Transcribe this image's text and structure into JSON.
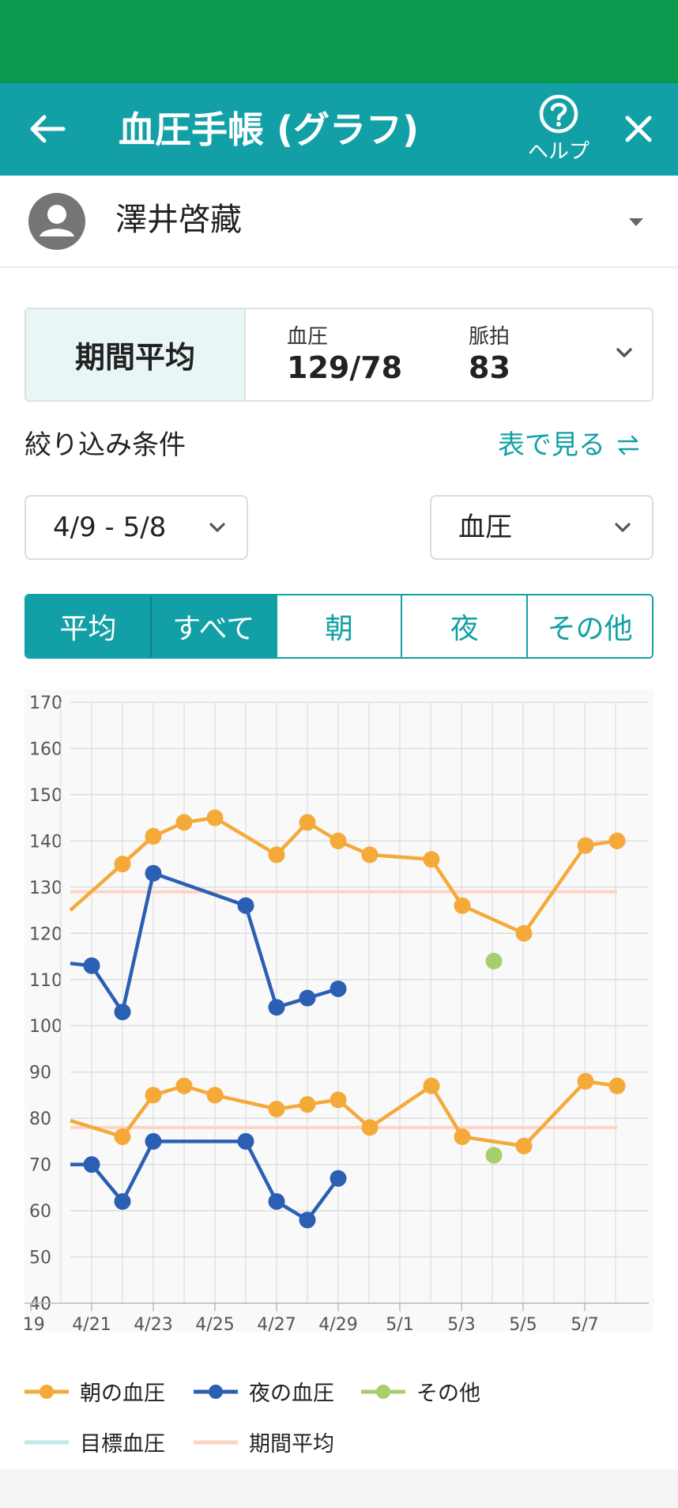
{
  "colors": {
    "status_bar": "#0a9a4e",
    "app_bar": "#12a0a6",
    "accent": "#12a0a6",
    "summary_label_bg": "#e8f6f5",
    "morning": "#f5a939",
    "night": "#2b5fb3",
    "other": "#a6cf6c",
    "target": "#bfeae6",
    "average": "#fdd3c4",
    "grid": "#dddddd",
    "plot_bg": "#f9f9f9"
  },
  "header": {
    "back_icon": "arrow-left-icon",
    "title": "血圧手帳 (グラフ)",
    "help_icon": "question-circle-icon",
    "help_label": "ヘルプ",
    "close_icon": "close-icon"
  },
  "user": {
    "avatar_icon": "person-avatar-icon",
    "name": "澤井啓藏",
    "dropdown_icon": "triangle-down-icon"
  },
  "summary": {
    "label": "期間平均",
    "bp_caption": "血圧",
    "bp_value": "129/78",
    "pulse_caption": "脈拍",
    "pulse_value": "83",
    "expand_icon": "chevron-down-icon"
  },
  "filter": {
    "title": "絞り込み条件",
    "table_link": "表で見る",
    "swap_icon": "swap-arrows-icon",
    "period_value": "4/9 - 5/8",
    "type_value": "血圧"
  },
  "tabs": [
    {
      "label": "平均",
      "active": true
    },
    {
      "label": "すべて",
      "active": true
    },
    {
      "label": "朝",
      "active": false
    },
    {
      "label": "夜",
      "active": false
    },
    {
      "label": "その他",
      "active": false
    }
  ],
  "chart_data": {
    "type": "line",
    "x_ticks": [
      "/19",
      "4/21",
      "4/23",
      "4/25",
      "4/27",
      "4/29",
      "5/1",
      "5/3",
      "5/5",
      "5/7"
    ],
    "y_ticks": [
      170,
      160,
      150,
      140,
      130,
      120,
      110,
      100,
      90,
      80,
      70,
      60,
      50,
      40
    ],
    "ylim": [
      40,
      170
    ],
    "grid": true,
    "series": [
      {
        "name": "朝の血圧",
        "key": "morning",
        "lines": [
          [
            [
              "4/20",
              125,
              false
            ],
            [
              "4/21",
              135
            ],
            [
              "4/22",
              141
            ],
            [
              "4/23",
              144
            ],
            [
              "4/24",
              145
            ],
            [
              "4/26",
              137
            ],
            [
              "4/27",
              144
            ],
            [
              "4/28",
              140
            ],
            [
              "4/29",
              137
            ],
            [
              "5/1",
              136
            ],
            [
              "5/2",
              126
            ],
            [
              "5/4",
              120
            ],
            [
              "5/6",
              139
            ],
            [
              "5/7",
              140
            ]
          ],
          [
            [
              "4/20",
              79.5,
              false
            ],
            [
              "4/21",
              76
            ],
            [
              "4/22",
              85
            ],
            [
              "4/23",
              87
            ],
            [
              "4/24",
              85
            ],
            [
              "4/26",
              82
            ],
            [
              "4/27",
              83
            ],
            [
              "4/28",
              84
            ],
            [
              "4/29",
              78
            ],
            [
              "5/1",
              87
            ],
            [
              "5/2",
              76
            ],
            [
              "5/4",
              74
            ],
            [
              "5/6",
              88
            ],
            [
              "5/7",
              87
            ]
          ]
        ]
      },
      {
        "name": "夜の血圧",
        "key": "night",
        "lines": [
          [
            [
              "4/20",
              113.5,
              false
            ],
            [
              "4/20.8",
              113
            ],
            [
              "4/21",
              103
            ],
            [
              "4/22",
              133
            ],
            [
              "4/25",
              126
            ],
            [
              "4/26",
              104
            ],
            [
              "4/27",
              106
            ],
            [
              "4/28",
              108
            ]
          ],
          [
            [
              "4/20",
              70,
              false
            ],
            [
              "4/20.8",
              70
            ],
            [
              "4/21",
              62
            ],
            [
              "4/22",
              75
            ],
            [
              "4/25",
              75
            ],
            [
              "4/26",
              62
            ],
            [
              "4/27",
              58
            ],
            [
              "4/28",
              67
            ]
          ]
        ]
      },
      {
        "name": "その他",
        "key": "other",
        "points": [
          [
            "5/3",
            114
          ],
          [
            "5/3",
            72
          ]
        ]
      }
    ],
    "reference_lines": [
      {
        "name": "期間平均",
        "key": "average",
        "values": [
          129,
          78
        ]
      },
      {
        "name": "目標血圧",
        "key": "target",
        "values": []
      }
    ]
  },
  "legend": [
    {
      "label": "朝の血圧",
      "key": "morning",
      "marker": "line-dot"
    },
    {
      "label": "夜の血圧",
      "key": "night",
      "marker": "line-dot"
    },
    {
      "label": "その他",
      "key": "other",
      "marker": "line-dot"
    },
    {
      "label": "目標血圧",
      "key": "target",
      "marker": "line"
    },
    {
      "label": "期間平均",
      "key": "average",
      "marker": "line"
    }
  ]
}
